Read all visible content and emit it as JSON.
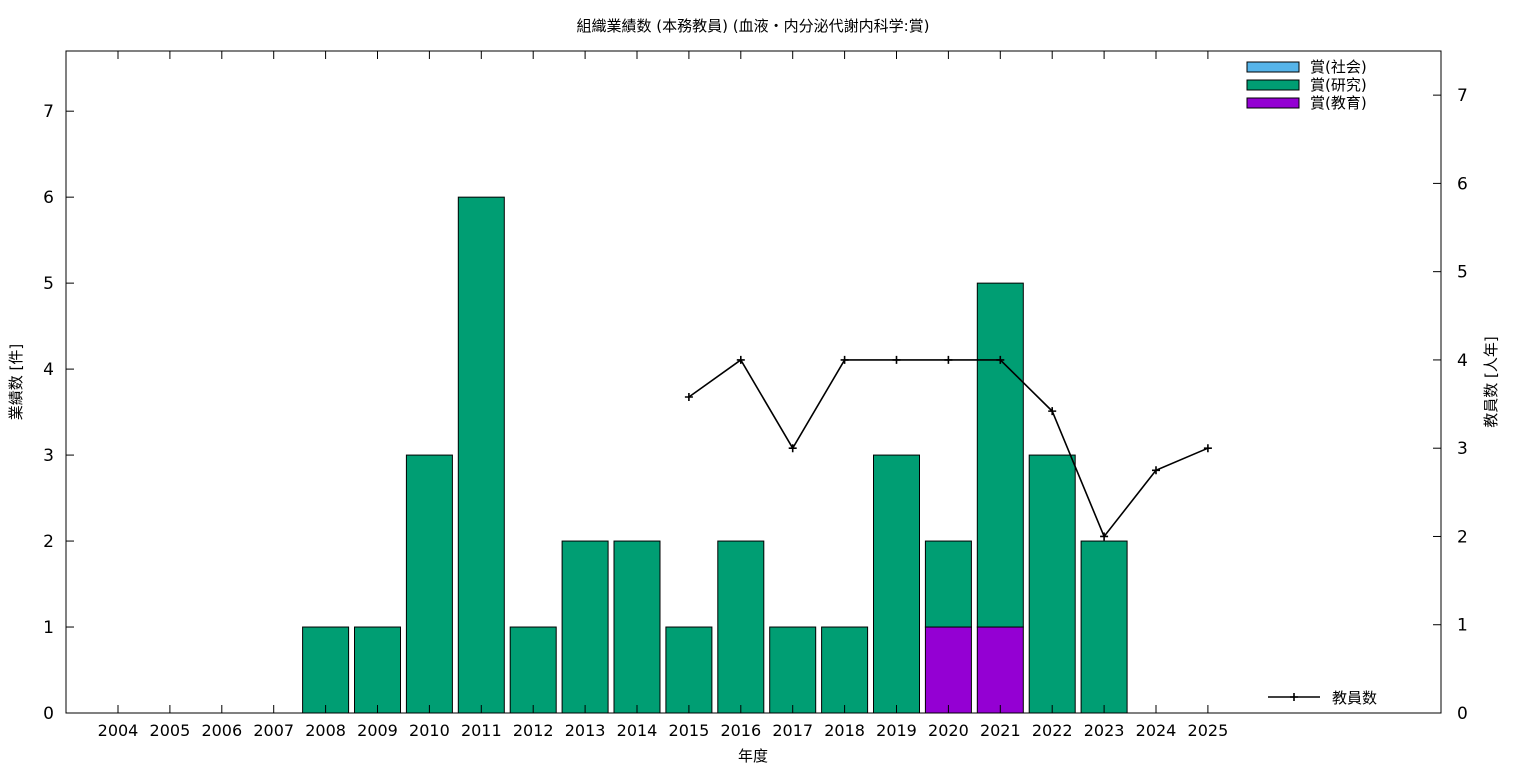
{
  "chart_data": {
    "type": "bar",
    "title": "組織業績数 (本務教員) (血液・内分泌代謝内科学:賞)",
    "xlabel": "年度",
    "ylabel": "業績数 [件]",
    "y2label": "教員数 [人年]",
    "categories": [
      "2004",
      "2005",
      "2006",
      "2007",
      "2008",
      "2009",
      "2010",
      "2011",
      "2012",
      "2013",
      "2014",
      "2015",
      "2016",
      "2017",
      "2018",
      "2019",
      "2020",
      "2021",
      "2022",
      "2023",
      "2024",
      "2025"
    ],
    "ylim": [
      0,
      7.7
    ],
    "y2lim": [
      0,
      7.5
    ],
    "yticks": [
      0,
      1,
      2,
      3,
      4,
      5,
      6,
      7
    ],
    "y2ticks": [
      0,
      1,
      2,
      3,
      4,
      5,
      6,
      7
    ],
    "stacked": true,
    "series": [
      {
        "name": "賞(教育)",
        "color": "#9400d3",
        "values": [
          0,
          0,
          0,
          0,
          0,
          0,
          0,
          0,
          0,
          0,
          0,
          0,
          0,
          0,
          0,
          0,
          1,
          1,
          0,
          0,
          0,
          0
        ]
      },
      {
        "name": "賞(研究)",
        "color": "#009e73",
        "values": [
          0,
          0,
          0,
          0,
          1,
          1,
          3,
          6,
          1,
          2,
          2,
          1,
          2,
          1,
          1,
          3,
          1,
          4,
          3,
          2,
          0,
          0
        ]
      },
      {
        "name": "賞(社会)",
        "color": "#56b4e9",
        "values": [
          0,
          0,
          0,
          0,
          0,
          0,
          0,
          0,
          0,
          0,
          0,
          0,
          0,
          0,
          0,
          0,
          0,
          0,
          0,
          0,
          0,
          0
        ]
      }
    ],
    "legend_order": [
      "賞(社会)",
      "賞(研究)",
      "賞(教育)"
    ],
    "legend_position": "top-right",
    "line_series": {
      "name": "教員数",
      "axis": "y2",
      "color": "#000000",
      "values": [
        null,
        null,
        null,
        null,
        null,
        null,
        null,
        null,
        null,
        null,
        null,
        3.58,
        4.0,
        3.0,
        4.0,
        4.0,
        4.0,
        4.0,
        3.42,
        2.0,
        2.75,
        3.0
      ]
    },
    "line_legend_position": "bottom-right",
    "grid": false
  }
}
